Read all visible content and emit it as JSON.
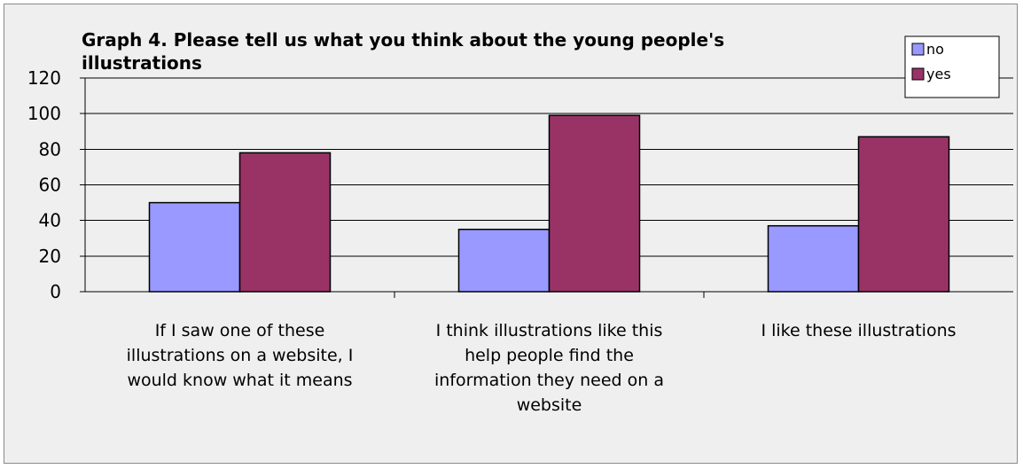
{
  "chart_data": {
    "type": "bar",
    "title_lines": [
      "Graph 4. Please tell us what you think about the young people's",
      "illustrations"
    ],
    "categories": [
      [
        "If I saw one of these",
        "illustrations on a website, I",
        "would know what it means"
      ],
      [
        "I think illustrations like this",
        "help people find the",
        "information they need on a",
        "website"
      ],
      [
        "I like these illustrations"
      ]
    ],
    "series": [
      {
        "name": "no",
        "values": [
          50,
          35,
          37
        ],
        "color": "#9999ff"
      },
      {
        "name": "yes",
        "values": [
          78,
          99,
          87
        ],
        "color": "#993366"
      }
    ],
    "ylim": [
      0,
      120
    ],
    "yticks": [
      0,
      20,
      40,
      60,
      80,
      100,
      120
    ],
    "grid": true,
    "legend_position": "top-right"
  }
}
